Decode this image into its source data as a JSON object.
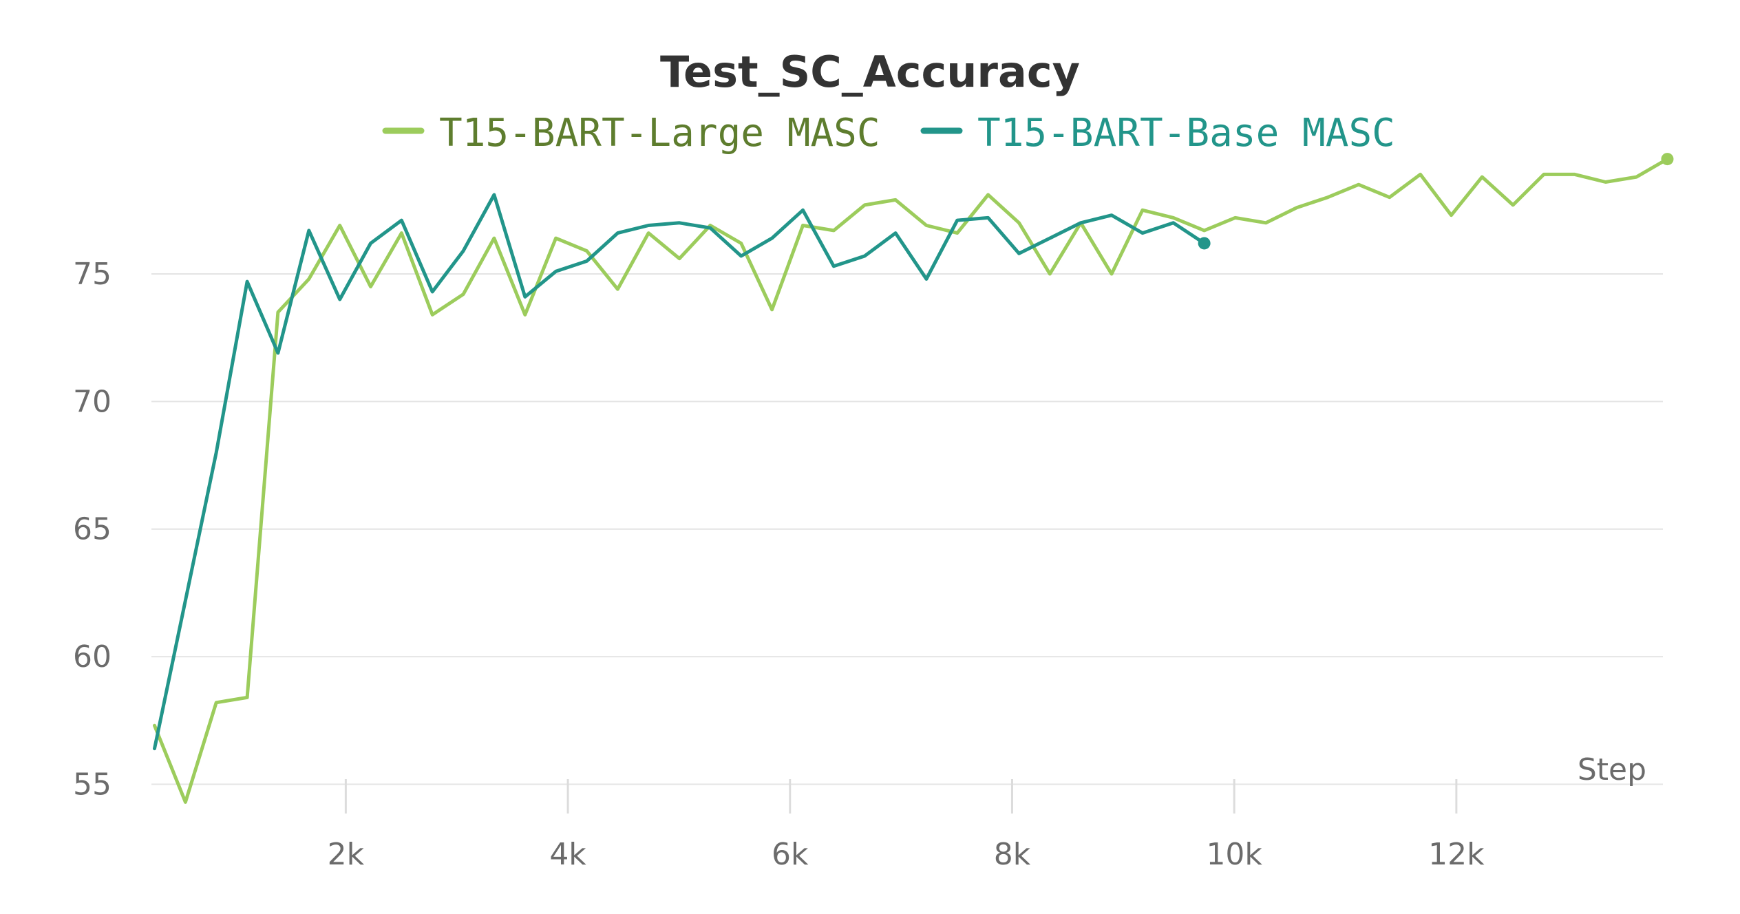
{
  "chart_data": {
    "type": "line",
    "title": "Test_SC_Accuracy",
    "xlabel": "Step",
    "ylabel": "",
    "xlim": [
      250,
      13860
    ],
    "ylim": [
      54.5,
      79.8
    ],
    "grid": true,
    "legend_position": "top-center",
    "yticks": [
      {
        "value": 55,
        "label": "55"
      },
      {
        "value": 60,
        "label": "60"
      },
      {
        "value": 65,
        "label": "65"
      },
      {
        "value": 70,
        "label": "70"
      },
      {
        "value": 75,
        "label": "75"
      }
    ],
    "xticks": [
      {
        "value": 2000,
        "label": "2k"
      },
      {
        "value": 4000,
        "label": "4k"
      },
      {
        "value": 6000,
        "label": "6k"
      },
      {
        "value": 8000,
        "label": "8k"
      },
      {
        "value": 10000,
        "label": "10k"
      },
      {
        "value": 12000,
        "label": "12k"
      }
    ],
    "series": [
      {
        "name": "T15-BART-Large MASC",
        "color": "#9ccc5c",
        "text_color": "#5e7d2e",
        "x": [
          278,
          556,
          834,
          1112,
          1390,
          1668,
          1946,
          2224,
          2502,
          2780,
          3058,
          3336,
          3614,
          3892,
          4170,
          4448,
          4726,
          5004,
          5282,
          5560,
          5838,
          6116,
          6394,
          6672,
          6950,
          7228,
          7506,
          7784,
          8062,
          8340,
          8618,
          8896,
          9174,
          9452,
          9730,
          10008,
          10286,
          10564,
          10842,
          11120,
          11398,
          11676,
          11954,
          12232,
          12510,
          12788,
          13066,
          13344,
          13622,
          13900
        ],
        "values": [
          57.3,
          54.3,
          58.2,
          58.4,
          73.5,
          74.8,
          76.9,
          74.5,
          76.6,
          73.4,
          74.2,
          76.4,
          73.4,
          76.4,
          75.9,
          74.4,
          76.6,
          75.6,
          76.9,
          76.2,
          73.6,
          76.9,
          76.7,
          77.7,
          77.9,
          76.9,
          76.6,
          78.1,
          77.0,
          75.0,
          77.0,
          75.0,
          77.5,
          77.2,
          76.7,
          77.2,
          77.0,
          77.6,
          78.0,
          78.5,
          78.0,
          78.9,
          77.3,
          78.8,
          77.7,
          78.9,
          78.9,
          78.6,
          78.8,
          79.5
        ]
      },
      {
        "name": "T15-BART-Base MASC",
        "color": "#22958a",
        "text_color": "#22958a",
        "x": [
          278,
          556,
          834,
          1112,
          1390,
          1668,
          1946,
          2224,
          2502,
          2780,
          3058,
          3336,
          3614,
          3892,
          4170,
          4448,
          4726,
          5004,
          5282,
          5560,
          5838,
          6116,
          6394,
          6672,
          6950,
          7228,
          7506,
          7784,
          8062,
          8340,
          8618,
          8896,
          9174,
          9452,
          9730
        ],
        "values": [
          56.4,
          62.2,
          68.0,
          74.7,
          71.9,
          76.7,
          74.0,
          76.2,
          77.1,
          74.3,
          75.9,
          78.1,
          74.1,
          75.1,
          75.5,
          76.6,
          76.9,
          77.0,
          76.8,
          75.7,
          76.4,
          77.5,
          75.3,
          75.7,
          76.6,
          74.8,
          77.1,
          77.2,
          75.8,
          76.4,
          77.0,
          77.3,
          76.6,
          77.0,
          76.2
        ]
      }
    ]
  }
}
